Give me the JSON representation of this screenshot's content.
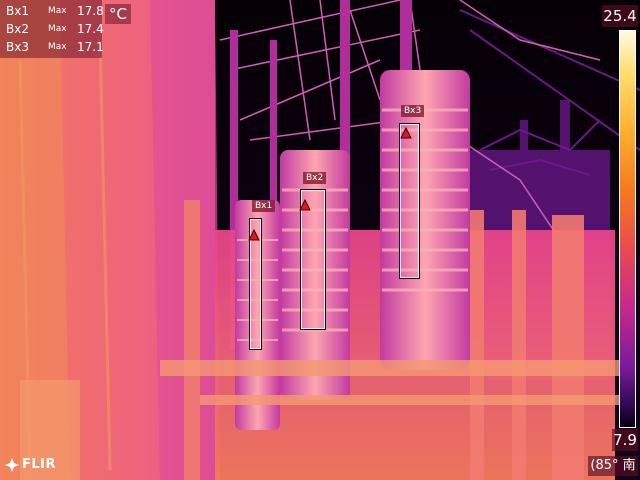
{
  "measurements": [
    {
      "label": "Bx1",
      "stat": "Max",
      "value": "17.8"
    },
    {
      "label": "Bx2",
      "stat": "Max",
      "value": "17.4"
    },
    {
      "label": "Bx3",
      "stat": "Max",
      "value": "17.1"
    }
  ],
  "unit": "°C",
  "scale": {
    "max": "25.4",
    "min": "7.9"
  },
  "boxes": [
    {
      "tag": "Bx1"
    },
    {
      "tag": "Bx2"
    },
    {
      "tag": "Bx3"
    }
  ],
  "logo": {
    "text": "FLIR"
  },
  "bottom_readout": "(85° 南",
  "colors": {
    "palette_hot": "#fff6c8",
    "palette_warm": "#f77a1e",
    "palette_mid": "#e8448a",
    "palette_cool": "#7a1a9a",
    "palette_cold": "#08000e",
    "hotspot": "#e01818"
  }
}
